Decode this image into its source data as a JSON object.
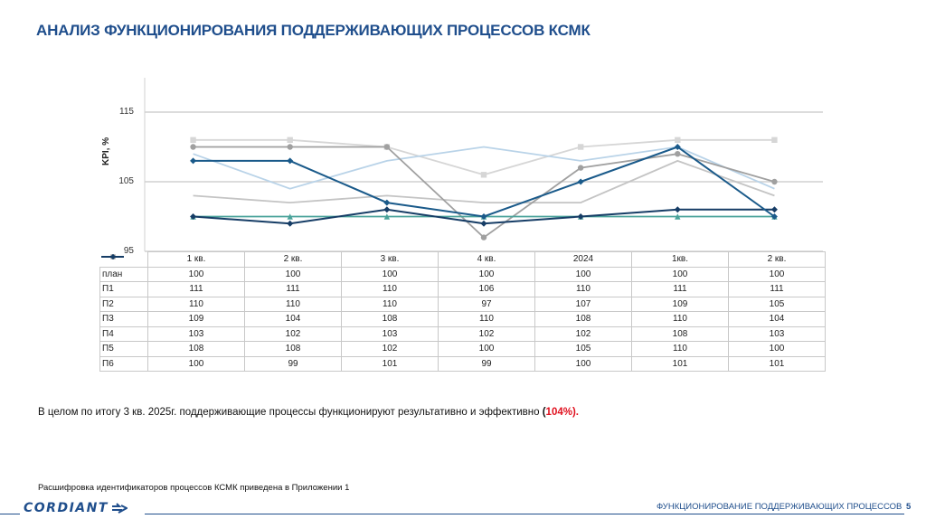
{
  "page": {
    "title": "АНАЛИЗ ФУНКЦИОНИРОВАНИЯ ПОДДЕРЖИВАЮЩИХ ПРОЦЕССОВ КСМК",
    "summary_prefix": "В целом по итогу 3 кв. 2025г. поддерживающие процессы функционируют результативно и эффективно ",
    "summary_open": "(",
    "summary_value": "104%).",
    "footnote": "Расшифровка идентификаторов процессов КСМК приведена в Приложении 1",
    "footer_title": "ФУНКЦИОНИРОВАНИЕ ПОДДЕРЖИВАЮЩИХ ПРОЦЕССОВ",
    "page_number": "5",
    "logo_text": "CORDIANT"
  },
  "colors": {
    "brand": "#1f4e8c",
    "highlight": "#e0101e"
  },
  "chart_data": {
    "type": "line",
    "title": "",
    "xlabel": "",
    "ylabel": "KPI, %",
    "ylim": [
      95,
      118
    ],
    "yticks": [
      95,
      105,
      115
    ],
    "ytick_labels": [
      "95",
      "105",
      "115"
    ],
    "grid": true,
    "legend_position": "data-table-left",
    "categories": [
      "1 кв.",
      "2 кв.",
      "3 кв.",
      "4 кв.",
      "2024",
      "1кв.",
      "2 кв."
    ],
    "series": [
      {
        "name": "план",
        "values": [
          100,
          100,
          100,
          100,
          100,
          100,
          100
        ],
        "color": "#4aa39a",
        "marker": "triangle"
      },
      {
        "name": "П1",
        "values": [
          111,
          111,
          110,
          106,
          110,
          111,
          111
        ],
        "color": "#d6d6d6",
        "marker": "square"
      },
      {
        "name": "П2",
        "values": [
          110,
          110,
          110,
          97,
          107,
          109,
          105
        ],
        "color": "#a0a0a0",
        "marker": "circle"
      },
      {
        "name": "П3",
        "values": [
          109,
          104,
          108,
          110,
          108,
          110,
          104
        ],
        "color": "#b9d3e8",
        "marker": "none"
      },
      {
        "name": "П4",
        "values": [
          103,
          102,
          103,
          102,
          102,
          108,
          103
        ],
        "color": "#c4c4c4",
        "marker": "none"
      },
      {
        "name": "П5",
        "values": [
          108,
          108,
          102,
          100,
          105,
          110,
          100
        ],
        "color": "#1a5a8a",
        "marker": "diamond"
      },
      {
        "name": "П6",
        "values": [
          100,
          99,
          101,
          99,
          100,
          101,
          101
        ],
        "color": "#163d66",
        "marker": "diamond"
      }
    ]
  }
}
